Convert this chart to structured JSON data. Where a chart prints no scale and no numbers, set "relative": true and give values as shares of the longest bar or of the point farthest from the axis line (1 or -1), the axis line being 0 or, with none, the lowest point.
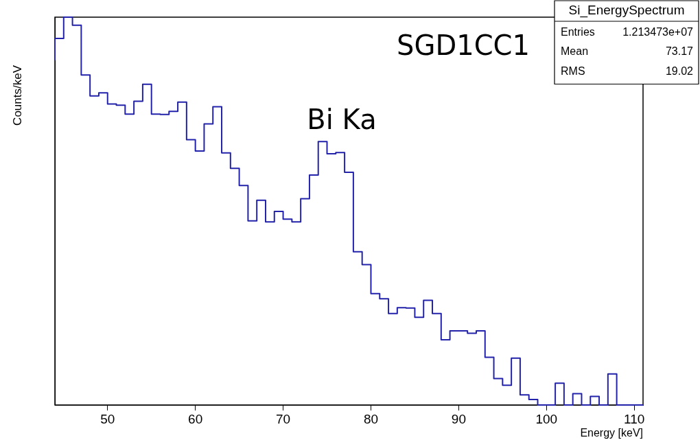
{
  "chart_data": {
    "type": "step",
    "title": "Si_EnergySpectrum",
    "xlabel": "Energy [keV]",
    "ylabel": "Counts/keV",
    "annotations": [
      "SGD1CC1",
      "Bi Ka",
      "Entries 1.213473e+07",
      "Mean 73.17",
      "RMS 19.02"
    ],
    "x": [
      44,
      45,
      46,
      47,
      48,
      49,
      50,
      51,
      52,
      53,
      54,
      55,
      56,
      57,
      58,
      59,
      60,
      61,
      62,
      63,
      64,
      65,
      66,
      67,
      68,
      69,
      70,
      71,
      72,
      73,
      74,
      75,
      76,
      77,
      78,
      79,
      80,
      81,
      82,
      83,
      84,
      85,
      86,
      87,
      88,
      89,
      90,
      91,
      92,
      93,
      94,
      95,
      96,
      97,
      98,
      99,
      100,
      101,
      102,
      103,
      104,
      105,
      106,
      107,
      108,
      109,
      110,
      111
    ],
    "values": [
      0.889,
      0.945,
      1,
      0.979,
      0.851,
      0.797,
      0.805,
      0.776,
      0.773,
      0.75,
      0.783,
      0.827,
      0.75,
      0.749,
      0.757,
      0.781,
      0.684,
      0.655,
      0.725,
      0.769,
      0.65,
      0.61,
      0.566,
      0.475,
      0.528,
      0.472,
      0.499,
      0.479,
      0.472,
      0.532,
      0.593,
      0.679,
      0.648,
      0.651,
      0.6,
      0.395,
      0.362,
      0.287,
      0.274,
      0.236,
      0.251,
      0.25,
      0.226,
      0.27,
      0.236,
      0.168,
      0.191,
      0.191,
      0.185,
      0.191,
      0.123,
      0.068,
      0.051,
      0.121,
      0.026,
      0.014,
      0,
      0,
      0.056,
      0,
      0.029,
      0,
      0.022,
      0,
      0.08,
      0,
      0,
      0
    ],
    "color": "#2222aa",
    "relative": true,
    "xlim": [
      44,
      111
    ],
    "xticks": [
      50,
      60,
      70,
      80,
      90,
      100,
      110
    ],
    "grid": false,
    "legend": false
  }
}
